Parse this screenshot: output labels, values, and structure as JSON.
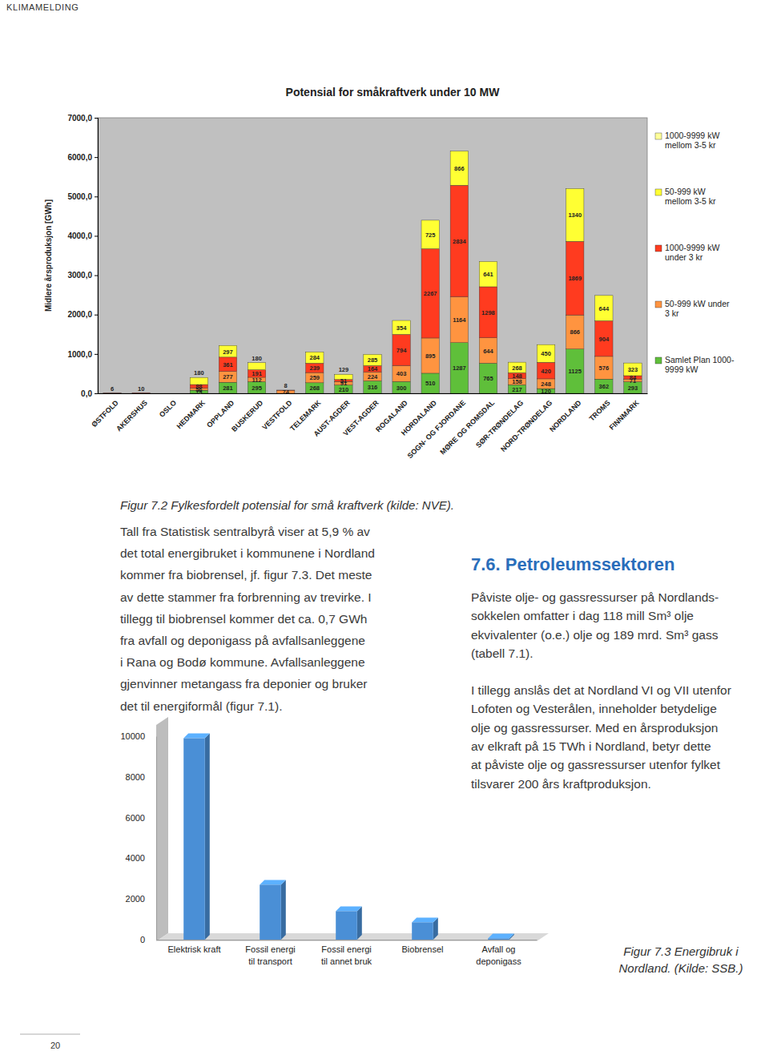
{
  "page": {
    "header": "KLIMAMELDING",
    "page_number": "20",
    "figure_2_caption": "Figur 7.2 Fylkesfordelt potensial for små kraftverk (kilde: NVE).",
    "left_text": [
      "Tall fra Statistisk sentralbyrå viser at 5,9 % av",
      "det total energibruket i kommunene i Nordland",
      "kommer fra biobrensel, jf. figur 7.3. Det meste",
      "av dette stammer fra forbrenning av trevirke. I",
      "tillegg til biobrensel kommer det ca. 0,7 GWh",
      "fra avfall og deponigass på avfallsanleggene",
      "i Rana og Bodø kommune. Avfallsanleggene",
      "gjenvinner metangass fra deponier og bruker",
      "det til energiformål (figur 7.1)."
    ],
    "section_heading": "7.6. Petroleumssektoren",
    "right_paragraphs": [
      [
        "Påviste olje- og gassressurser på Nordlands-",
        "sokkelen omfatter i dag 118 mill Sm³ olje",
        "ekvivalenter (o.e.) olje og 189 mrd. Sm³ gass",
        "(tabell 7.1)."
      ],
      [
        "I tillegg anslås det at Nordland VI og VII utenfor",
        "Lofoten og Vesterålen, inneholder betydelige",
        "olje og gassressurser. Med en årsproduksjon",
        "av elkraft på 15 TWh i Nordland, betyr dette",
        "at påviste olje og gassressurser utenfor fylket",
        "tilsvarer 200 års kraftproduksjon."
      ]
    ],
    "figure_3_caption": "Figur 7.3 Energibruk i\nNordland. (Kilde: SSB.)"
  },
  "chart_data": [
    {
      "type": "bar",
      "stacked": true,
      "title": "Potensial for småkraftverk under 10 MW",
      "y_label": "Midlere årsproduksjon [GWh]",
      "categories": [
        "ØSTFOLD",
        "AKERSHUS",
        "OSLO",
        "HEDMARK",
        "OPPLAND",
        "BUSKERUD",
        "VESTFOLD",
        "TELEMARK",
        "AUST-AGDER",
        "VEST-AGDER",
        "ROGALAND",
        "HORDALAND",
        "SOGN- OG FJORDANE",
        "MØRE OG ROMSDAL",
        "SØR-TRØNDELAG",
        "NORD-TRØNDELAG",
        "NORDLAND",
        "TROMS",
        "FINNMARK"
      ],
      "series": [
        {
          "name": "Samlet Plan 1000-\n9999 kW",
          "color": "#5fbf3a",
          "values": [
            null,
            null,
            null,
            79,
            281,
            295,
            null,
            268,
            210,
            316,
            300,
            510,
            1287,
            765,
            217,
            120,
            1125,
            362,
            293
          ]
        },
        {
          "name": "50-999 kW under\n3 kr",
          "color": "#ff9440",
          "values": [
            null,
            null,
            null,
            56,
            277,
            112,
            74,
            259,
            91,
            224,
            403,
            895,
            1164,
            644,
            158,
            248,
            866,
            576,
            71
          ]
        },
        {
          "name": "1000-9999 kW\nunder 3 kr",
          "color": "#ff3b1f",
          "values": [
            6,
            10,
            null,
            88,
            361,
            191,
            8,
            239,
            51,
            164,
            794,
            2267,
            2834,
            1298,
            148,
            420,
            1869,
            904,
            84
          ]
        },
        {
          "name": "50-999 kW\nmellom 3-5 kr",
          "color": "#ffff33",
          "values": [
            null,
            null,
            null,
            180,
            297,
            180,
            null,
            284,
            129,
            285,
            354,
            725,
            866,
            641,
            268,
            450,
            1340,
            644,
            323
          ]
        },
        {
          "name": "1000-9999 kW\nmellom 3-5 kr",
          "color": "#ffff99",
          "values": [
            null,
            null,
            null,
            null,
            null,
            null,
            null,
            null,
            null,
            null,
            null,
            null,
            null,
            null,
            null,
            null,
            null,
            null,
            null
          ]
        }
      ],
      "ylim": [
        0,
        7000
      ],
      "yticks": [
        {
          "value": 0,
          "label": "0,0"
        },
        {
          "value": 1000,
          "label": "1000,0"
        },
        {
          "value": 2000,
          "label": "2000,0"
        },
        {
          "value": 3000,
          "label": "3000,0"
        },
        {
          "value": 4000,
          "label": "4000,0"
        },
        {
          "value": 5000,
          "label": "5000,0"
        },
        {
          "value": 6000,
          "label": "6000,0"
        },
        {
          "value": 7000,
          "label": "7000,0"
        }
      ],
      "data_labels": true,
      "legend": "right",
      "grid": false
    },
    {
      "type": "bar",
      "categories": [
        "Elektrisk kraft",
        "Fossil energi\ntil transport",
        "Fossil energi\ntil annet bruk",
        "Biobrensel",
        "Avfall og\ndeponigass"
      ],
      "values": [
        9900,
        2700,
        1400,
        850,
        60
      ],
      "color": "#4a8fd6",
      "ylim": [
        0,
        10000
      ],
      "yticks": [
        0,
        2000,
        4000,
        6000,
        8000,
        10000
      ],
      "grid": false
    }
  ]
}
